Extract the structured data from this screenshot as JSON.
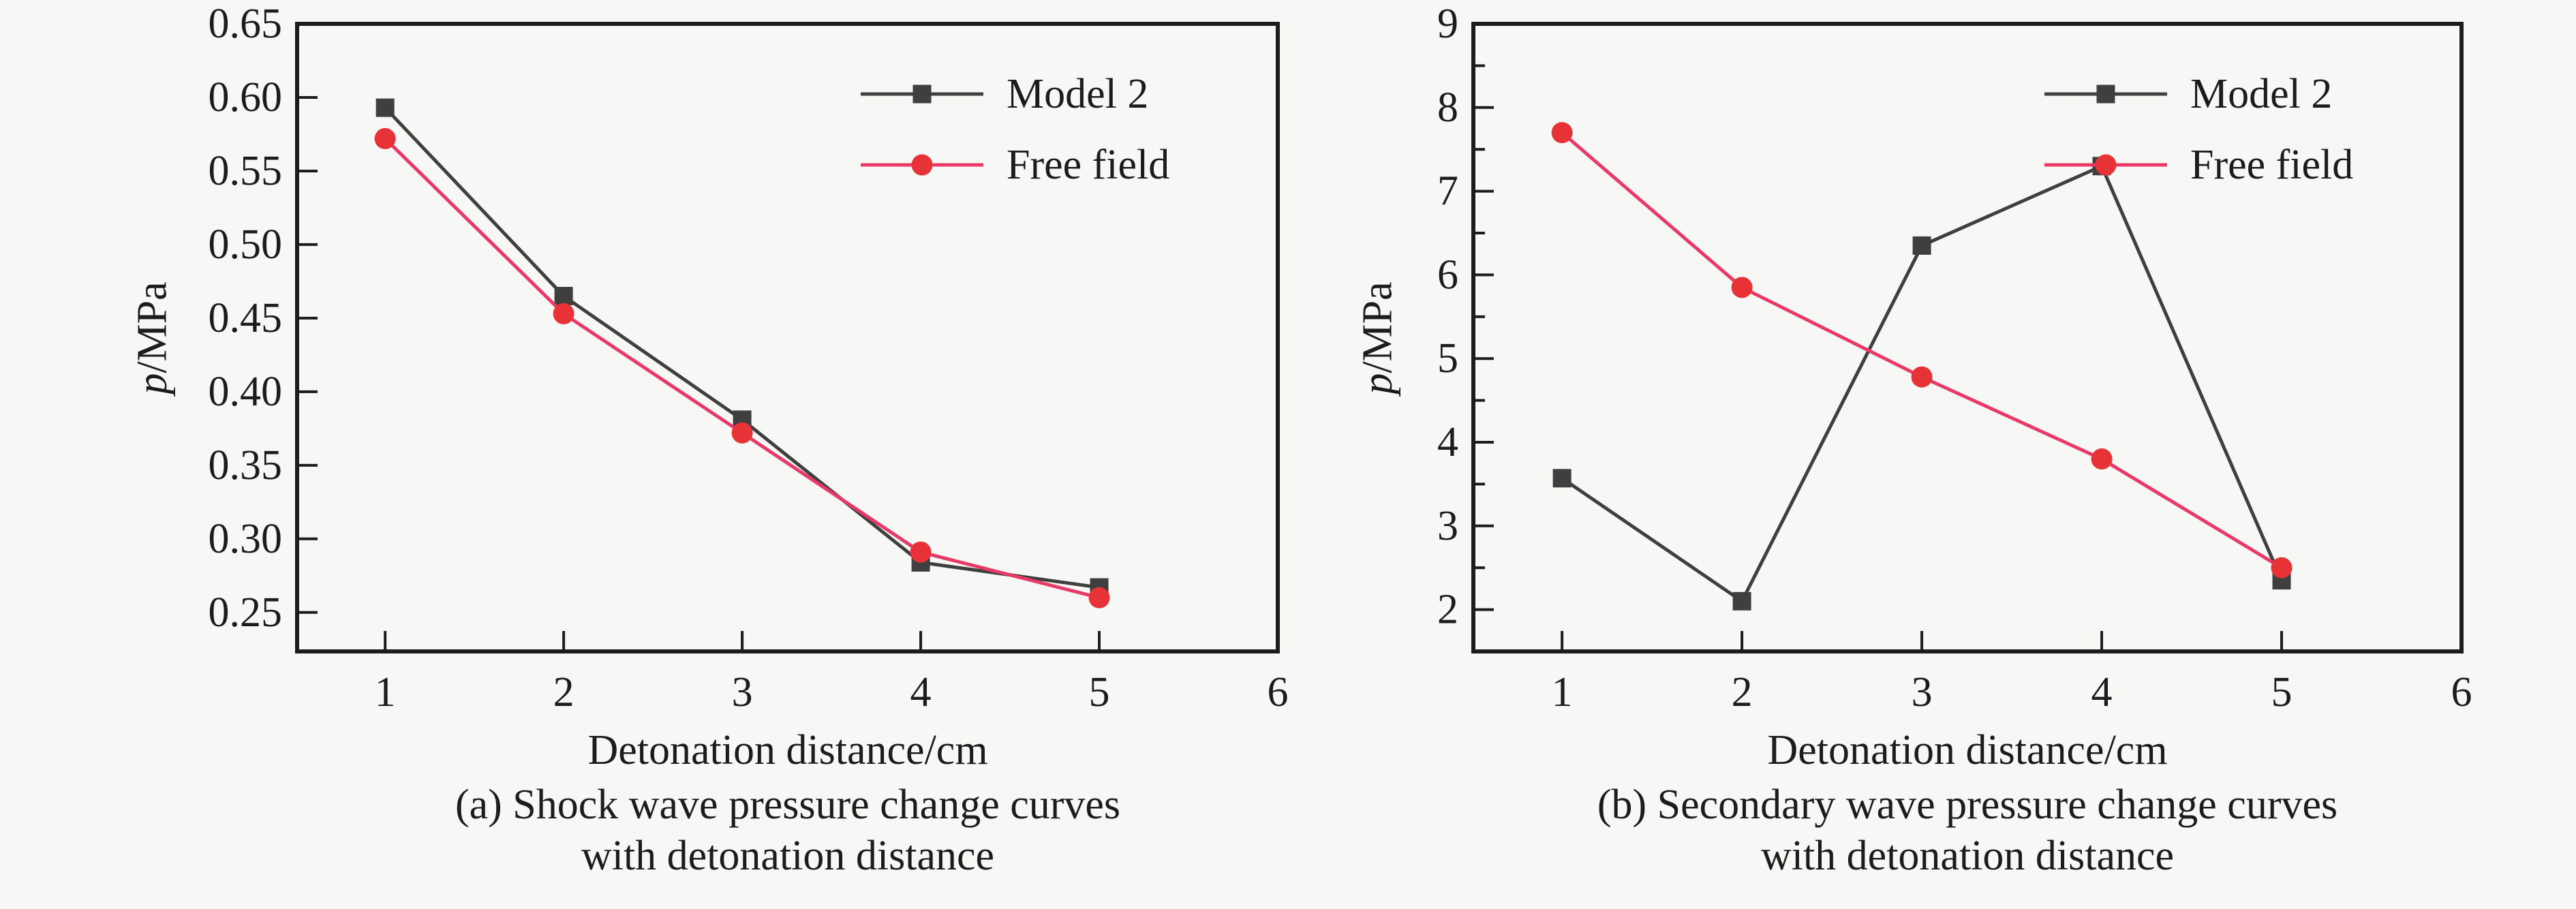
{
  "figure": {
    "background": "#f7f7f6",
    "ink_color": "#1c1c1c",
    "accent_gray": "#3f3f3f",
    "accent_pink": "#e93a67",
    "accent_red": "#e73338"
  },
  "chart_data": [
    {
      "type": "line",
      "panel_id": "a",
      "caption_line1": "(a) Shock wave pressure change curves",
      "caption_line2": "with detonation distance",
      "xlabel": "Detonation distance/cm",
      "ylabel_italic": "p",
      "ylabel_rest": "/MPa",
      "x": [
        1,
        2,
        3,
        4,
        5
      ],
      "series": [
        {
          "name": "Model 2",
          "line_color": "#3f3f3f",
          "marker": "square",
          "marker_color": "#3f3f3f",
          "values": [
            0.593,
            0.465,
            0.381,
            0.284,
            0.267
          ]
        },
        {
          "name": "Free field",
          "line_color": "#e93a67",
          "marker": "circle",
          "marker_color": "#e73338",
          "values": [
            0.572,
            0.453,
            0.372,
            0.291,
            0.26
          ]
        }
      ],
      "xlim": [
        0.507,
        6
      ],
      "ylim": [
        0.2235,
        0.65
      ],
      "xticks": [
        1,
        2,
        3,
        4,
        5,
        6
      ],
      "xtick_labels": [
        "1",
        "2",
        "3",
        "4",
        "5",
        "6"
      ],
      "yticks": [
        0.25,
        0.3,
        0.35,
        0.4,
        0.45,
        0.5,
        0.55,
        0.6,
        0.65
      ],
      "ytick_labels": [
        "0.25",
        "0.30",
        "0.35",
        "0.40",
        "0.45",
        "0.50",
        "0.55",
        "0.60",
        "0.65"
      ],
      "yticks_minor": [],
      "legend_position": "top-right",
      "grid": false
    },
    {
      "type": "line",
      "panel_id": "b",
      "caption_line1": "(b) Secondary wave pressure change curves",
      "caption_line2": "with detonation distance",
      "xlabel": "Detonation distance/cm",
      "ylabel_italic": "p",
      "ylabel_rest": "/MPa",
      "x": [
        1,
        2,
        3,
        4,
        5
      ],
      "series": [
        {
          "name": "Model 2",
          "line_color": "#3f3f3f",
          "marker": "square",
          "marker_color": "#3f3f3f",
          "values": [
            3.57,
            2.1,
            6.35,
            7.3,
            2.35
          ]
        },
        {
          "name": "Free field",
          "line_color": "#e93a67",
          "marker": "circle",
          "marker_color": "#e73338",
          "values": [
            7.7,
            5.85,
            4.78,
            3.8,
            2.5
          ]
        }
      ],
      "xlim": [
        0.507,
        6
      ],
      "ylim": [
        1.5,
        9
      ],
      "xticks": [
        1,
        2,
        3,
        4,
        5,
        6
      ],
      "xtick_labels": [
        "1",
        "2",
        "3",
        "4",
        "5",
        "6"
      ],
      "yticks": [
        2,
        3,
        4,
        5,
        6,
        7,
        8,
        9
      ],
      "ytick_labels": [
        "2",
        "3",
        "4",
        "5",
        "6",
        "7",
        "8",
        "9"
      ],
      "yticks_minor": [
        2.5,
        3.5,
        4.5,
        5.5,
        6.5,
        7.5,
        8.5
      ],
      "legend_position": "top-right",
      "grid": false
    }
  ]
}
